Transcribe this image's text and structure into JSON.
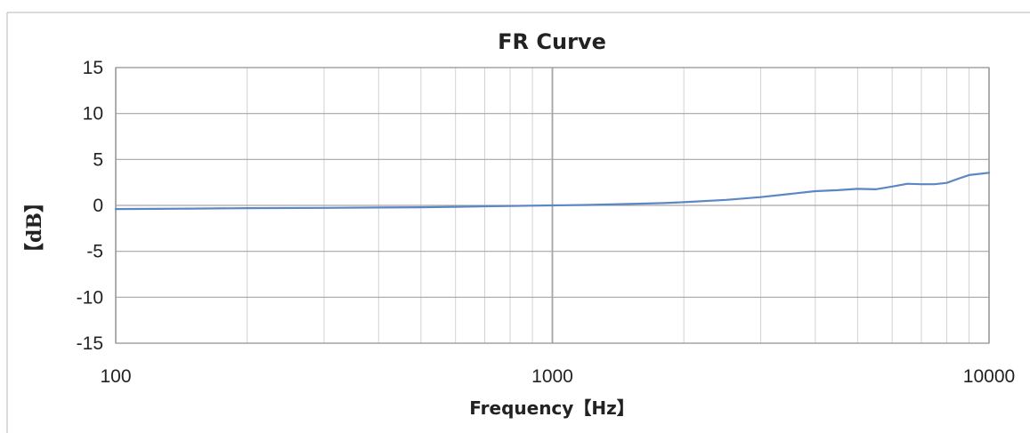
{
  "chart_data": {
    "type": "line",
    "title": "FR Curve",
    "xlabel": "Frequency【Hz】",
    "ylabel": "【dB】",
    "xscale": "log",
    "xlim": [
      100,
      10000
    ],
    "ylim": [
      -15,
      15
    ],
    "x_ticks": [
      100,
      1000,
      10000
    ],
    "y_ticks": [
      15,
      10,
      5,
      0,
      -5,
      -10,
      -15
    ],
    "grid": true,
    "legend": "none",
    "line_color": "#5b87c5",
    "series": [
      {
        "x": [
          100,
          150,
          200,
          300,
          400,
          500,
          600,
          700,
          800,
          900,
          1000,
          1200,
          1500,
          1800,
          2000,
          2500,
          3000,
          3500,
          4000,
          4500,
          5000,
          5500,
          6000,
          6500,
          7000,
          7500,
          8000,
          8500,
          9000,
          10000
        ],
        "values": [
          -0.4,
          -0.35,
          -0.3,
          -0.27,
          -0.23,
          -0.2,
          -0.15,
          -0.1,
          -0.07,
          -0.03,
          0.0,
          0.05,
          0.15,
          0.25,
          0.35,
          0.6,
          0.9,
          1.25,
          1.55,
          1.65,
          1.8,
          1.75,
          2.05,
          2.35,
          2.3,
          2.3,
          2.45,
          2.9,
          3.3,
          3.55
        ]
      }
    ]
  }
}
